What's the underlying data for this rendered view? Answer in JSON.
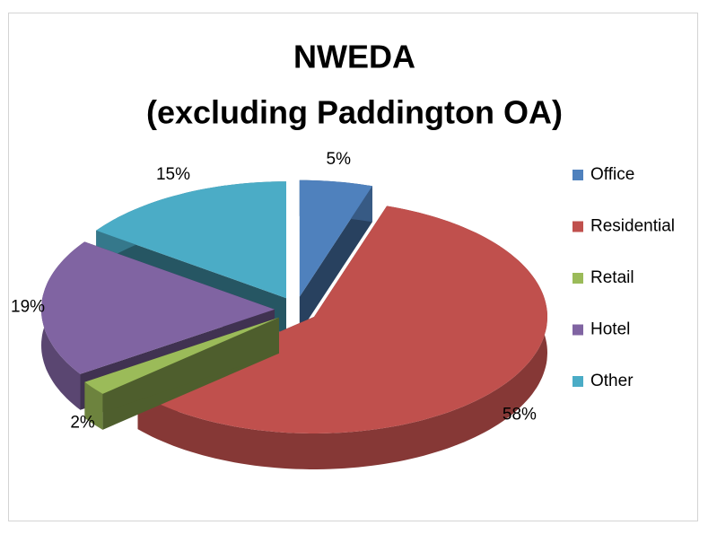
{
  "chart_data": {
    "type": "pie3d",
    "title": "NWEDA",
    "subtitle": "(excluding Paddington OA)",
    "categories": [
      "Office",
      "Residential",
      "Retail",
      "Hotel",
      "Other"
    ],
    "values": [
      5,
      58,
      2,
      19,
      15
    ],
    "value_labels": [
      "5%",
      "58%",
      "2%",
      "19%",
      "15%"
    ],
    "colors": [
      "#4f81bd",
      "#c0504d",
      "#9bbb59",
      "#8064a2",
      "#4bacc6"
    ],
    "legend": "right"
  }
}
